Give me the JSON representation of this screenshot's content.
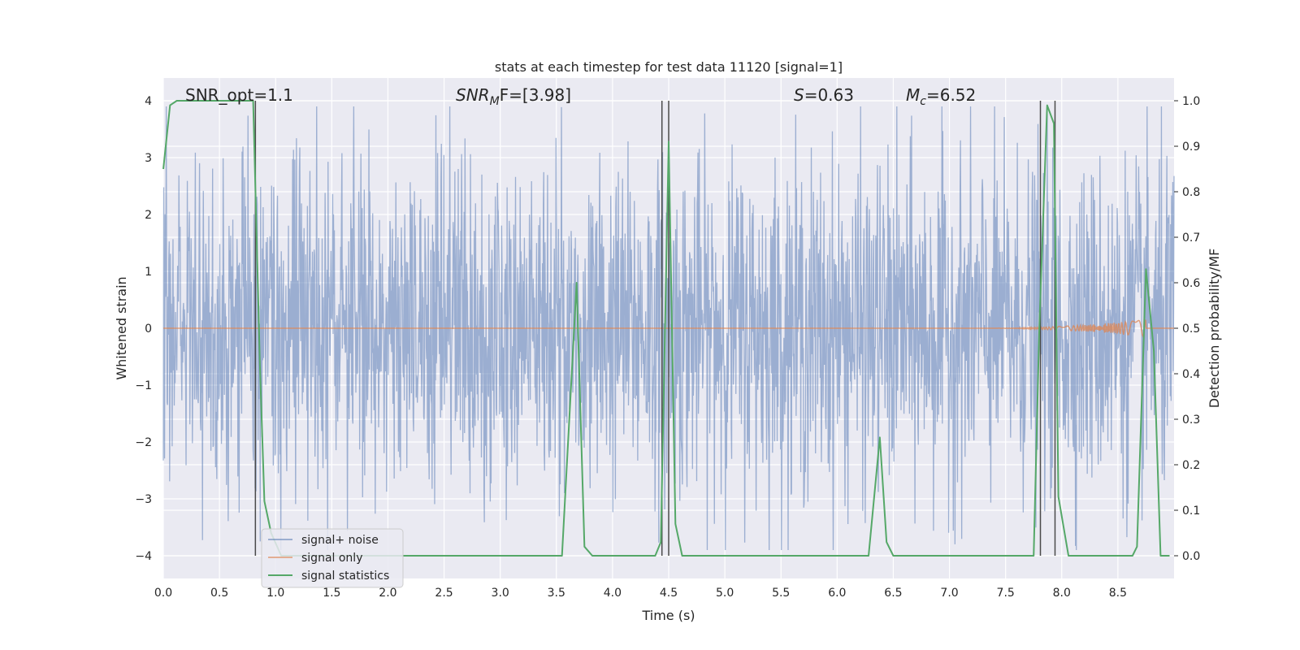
{
  "chart_data": {
    "type": "line",
    "title": "stats at each timestep for test data 11120 [signal=1]",
    "xlabel": "Time (s)",
    "ylabel_left": "Whitened strain",
    "ylabel_right": "Detection probability/MF",
    "xlim": [
      0,
      9.0
    ],
    "ylim_left": [
      -4.4,
      4.4
    ],
    "ylim_right": [
      -0.05,
      1.05
    ],
    "x_ticks": [
      "0.0",
      "0.5",
      "1.0",
      "1.5",
      "2.0",
      "2.5",
      "3.0",
      "3.5",
      "4.0",
      "4.5",
      "5.0",
      "5.5",
      "6.0",
      "6.5",
      "7.0",
      "7.5",
      "8.0",
      "8.5"
    ],
    "y_ticks_left": [
      "4",
      "3",
      "2",
      "1",
      "0",
      "−1",
      "−2",
      "−3",
      "−4"
    ],
    "y_ticks_right": [
      "1.0",
      "0.9",
      "0.8",
      "0.7",
      "0.6",
      "0.5",
      "0.4",
      "0.3",
      "0.2",
      "0.1",
      "0.0"
    ],
    "grid": true,
    "legend_position": "lower-left",
    "annotations": {
      "snr_opt": "SNR_opt=1.1",
      "snr_mf": {
        "base": "SNR",
        "sub": "M",
        "tail": "F=[3.98]"
      },
      "s_value": {
        "base": "S",
        "tail": "=0.63"
      },
      "mc_value": {
        "base": "M",
        "sub": "c",
        "tail": "=6.52"
      }
    },
    "series": [
      {
        "name": "signal+ noise",
        "color": "#4c72b0",
        "axis": "left",
        "description_envelope": {
          "typical_abs": 1.6,
          "max_abs": 3.9
        }
      },
      {
        "name": "signal only",
        "color": "#dd8452",
        "axis": "left",
        "chirp_start": 7.3,
        "chirp_end": 8.75,
        "chirp_peak_amp": 0.15
      },
      {
        "name": "signal statistics",
        "color": "#55a868",
        "axis": "right",
        "x": [
          0.0,
          0.06,
          0.12,
          0.7,
          0.8,
          0.86,
          0.9,
          0.96,
          1.05,
          3.55,
          3.68,
          3.75,
          3.82,
          4.38,
          4.43,
          4.5,
          4.56,
          4.62,
          6.28,
          6.38,
          6.44,
          6.5,
          7.75,
          7.8,
          7.87,
          7.93,
          7.97,
          8.06,
          8.63,
          8.67,
          8.75,
          8.82,
          8.88,
          8.96
        ],
        "y": [
          0.85,
          0.99,
          1.0,
          1.0,
          1.0,
          0.42,
          0.12,
          0.05,
          0.0,
          0.0,
          0.6,
          0.02,
          0.0,
          0.0,
          0.03,
          0.91,
          0.07,
          0.0,
          0.0,
          0.26,
          0.03,
          0.0,
          0.0,
          0.5,
          0.99,
          0.95,
          0.13,
          0.0,
          0.0,
          0.02,
          0.63,
          0.45,
          0.0,
          0.0
        ]
      }
    ],
    "vertical_lines": [
      {
        "x": 0.82,
        "y_from": -4,
        "y_to": 4
      },
      {
        "x": 4.44,
        "y_from": -4,
        "y_to": 4
      },
      {
        "x": 4.5,
        "y_from": -4,
        "y_to": 4
      },
      {
        "x": 7.81,
        "y_from": -4,
        "y_to": 4
      },
      {
        "x": 7.94,
        "y_from": -4,
        "y_to": 4
      }
    ],
    "colors": {
      "background": "#eaeaf2",
      "grid": "#ffffff",
      "vline": "#4a4a4a"
    }
  }
}
